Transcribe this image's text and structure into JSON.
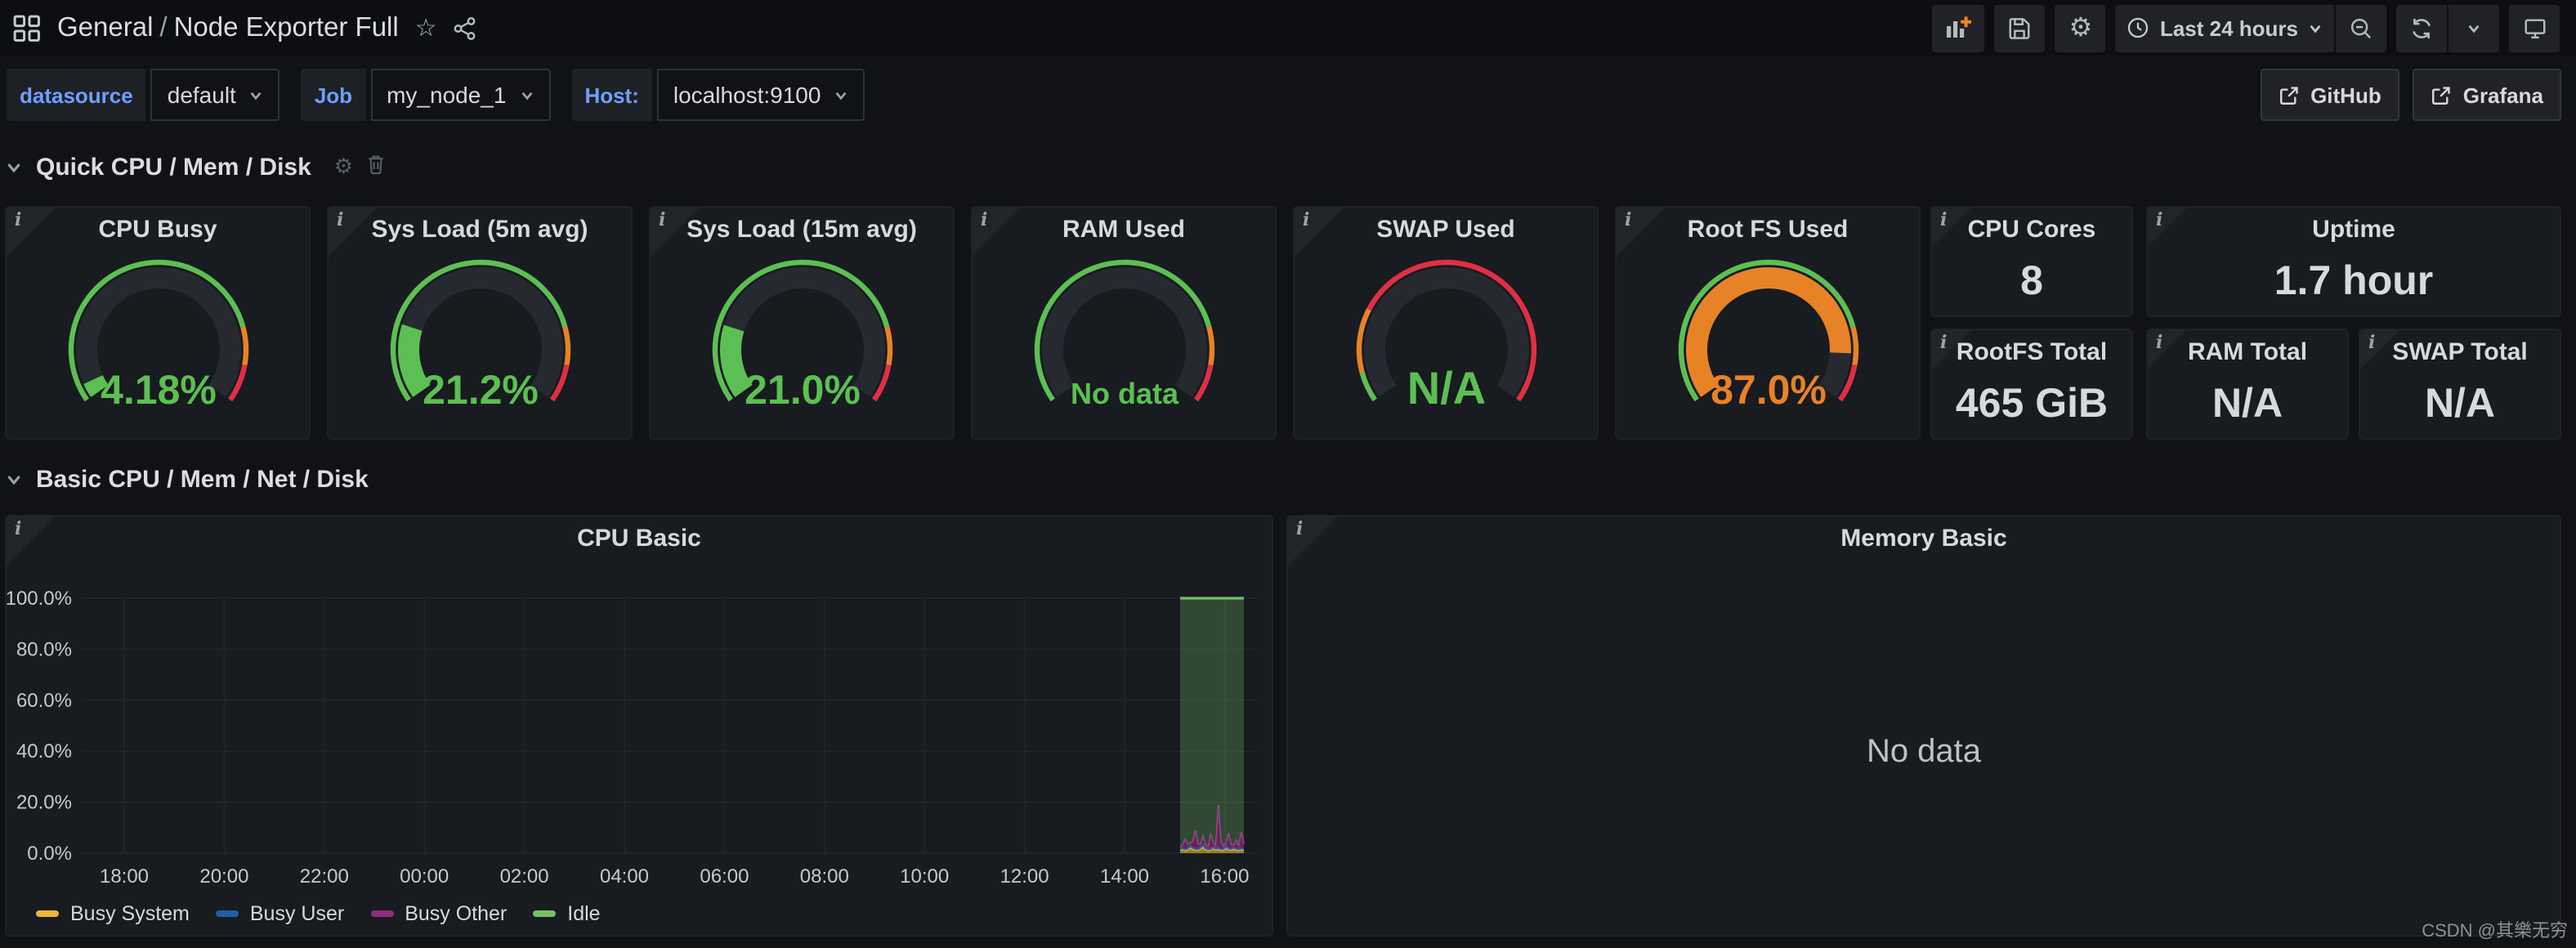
{
  "nav": {
    "breadcrumb": {
      "folder": "General",
      "separator": "/",
      "dashboard": "Node Exporter Full"
    },
    "toolbar": {
      "time_range": "Last 24 hours"
    },
    "icons": {
      "apps": "grid-4-squares",
      "star": "☆",
      "share": "share-alt",
      "add_panel": "bar-chart-plus",
      "save": "floppy",
      "settings": "⚙",
      "clock": "clock",
      "zoom_out": "magnifier-minus",
      "refresh": "sync",
      "chevron_down": "⌄",
      "tv": "monitor",
      "external_link": "arrow-out-of-box",
      "info": "i",
      "row_gear": "⚙",
      "trash": "trash-can"
    }
  },
  "filters": [
    {
      "label": "datasource",
      "value": "default"
    },
    {
      "label": "Job",
      "value": "my_node_1"
    },
    {
      "label": "Host:",
      "value": "localhost:9100"
    }
  ],
  "links": [
    {
      "label": "GitHub"
    },
    {
      "label": "Grafana"
    }
  ],
  "rows": {
    "quick": {
      "title": "Quick CPU / Mem / Disk"
    },
    "basic": {
      "title": "Basic CPU / Mem / Net / Disk"
    }
  },
  "quick_panels": [
    {
      "type": "gauge",
      "title": "CPU Busy",
      "display": "4.18%",
      "percent": 4.18,
      "value_color": "green",
      "thresholds": "standard",
      "text_size": 25
    },
    {
      "type": "gauge",
      "title": "Sys Load (5m avg)",
      "display": "21.2%",
      "percent": 21.2,
      "value_color": "green",
      "thresholds": "standard",
      "text_size": 25
    },
    {
      "type": "gauge",
      "title": "Sys Load (15m avg)",
      "display": "21.0%",
      "percent": 21.0,
      "value_color": "green",
      "thresholds": "standard",
      "text_size": 25
    },
    {
      "type": "gauge",
      "title": "RAM Used",
      "display": "No data",
      "percent": null,
      "value_color": "green",
      "thresholds": "standard",
      "text_size": 18
    },
    {
      "type": "gauge",
      "title": "SWAP Used",
      "display": "N/A",
      "percent": null,
      "value_color": "green",
      "thresholds": "swap",
      "text_size": 28
    },
    {
      "type": "gauge",
      "title": "Root FS Used",
      "display": "87.0%",
      "percent": 87.0,
      "value_color": "orange",
      "thresholds": "standard",
      "text_size": 25
    },
    {
      "type": "stat",
      "title": "CPU Cores",
      "display": "8"
    },
    {
      "type": "stat",
      "title": "Uptime",
      "display": "1.7 hour"
    },
    {
      "type": "stat",
      "title": "RootFS Total",
      "display": "465 GiB"
    },
    {
      "type": "stat",
      "title": "RAM Total",
      "display": "N/A"
    },
    {
      "type": "stat",
      "title": "SWAP Total",
      "display": "N/A"
    }
  ],
  "thresholds": {
    "standard": [
      {
        "stop": 0,
        "color": "#5CBF53"
      },
      {
        "stop": 80,
        "color": "#E88226"
      },
      {
        "stop": 90,
        "color": "#E02F44"
      },
      {
        "stop": 100,
        "color": null
      }
    ],
    "swap": [
      {
        "stop": 0,
        "color": "#5CBF53"
      },
      {
        "stop": 8,
        "color": "#E88226"
      },
      {
        "stop": 25,
        "color": "#E02F44"
      },
      {
        "stop": 100,
        "color": null
      }
    ]
  },
  "charts": {
    "cpu_basic": {
      "title": "CPU Basic"
    },
    "memory_basic": {
      "title": "Memory Basic",
      "no_data": "No data"
    }
  },
  "chart_data": {
    "type": "area",
    "title": "CPU Basic",
    "stacked": true,
    "ylim": [
      0,
      100
    ],
    "grid": true,
    "legend_position": "bottom",
    "y_ticks": [
      "0.0%",
      "20.0%",
      "40.0%",
      "60.0%",
      "80.0%",
      "100.0%"
    ],
    "x_ticks": [
      "18:00",
      "20:00",
      "22:00",
      "00:00",
      "02:00",
      "04:00",
      "06:00",
      "08:00",
      "10:00",
      "12:00",
      "14:00",
      "16:00"
    ],
    "data_window": {
      "start": "15:10",
      "end": "16:27"
    },
    "series": [
      {
        "name": "Busy System",
        "color": "#EAB839",
        "values": [
          1.2,
          1.4,
          1.1,
          1.3,
          2.1,
          1.5,
          1.2,
          1.1,
          1.6,
          2.4,
          1.3,
          1.1,
          1.2,
          1.8,
          1.3,
          1.5,
          1.1,
          1.2,
          1.9,
          1.4,
          1.2,
          1.6,
          1.3,
          1.1,
          1.4,
          1.2
        ]
      },
      {
        "name": "Busy User",
        "color": "#1F60A8",
        "values": [
          0.5,
          0.6,
          0.5,
          0.7,
          0.9,
          0.6,
          0.5,
          0.5,
          0.8,
          1.0,
          0.6,
          0.5,
          0.5,
          0.7,
          0.6,
          0.8,
          0.5,
          0.5,
          0.9,
          0.6,
          0.5,
          0.7,
          0.5,
          0.5,
          0.6,
          0.5
        ]
      },
      {
        "name": "Busy Other",
        "color": "#8D2F7E",
        "values": [
          0.6,
          1.2,
          3.8,
          1.5,
          0.9,
          2.6,
          7.2,
          2.0,
          1.0,
          3.4,
          1.2,
          0.8,
          5.5,
          1.6,
          1.0,
          16.5,
          2.8,
          1.0,
          0.9,
          5.8,
          1.6,
          0.8,
          3.2,
          1.0,
          6.4,
          1.8
        ]
      },
      {
        "name": "Idle",
        "color": "#73BF69",
        "values": [
          97.7,
          96.8,
          94.6,
          96.5,
          96.1,
          95.3,
          91.1,
          96.4,
          96.6,
          93.2,
          96.9,
          97.6,
          92.8,
          95.9,
          97.1,
          81.2,
          95.6,
          97.3,
          96.3,
          92.2,
          96.7,
          96.9,
          95.0,
          97.4,
          91.6,
          96.5
        ]
      }
    ]
  },
  "watermark": "CSDN @其樂无穷",
  "colors": {
    "page_bg": "#111217",
    "nav_bg": "#0c0e11",
    "panel_bg": "#181b1f",
    "text": "#d8d9da",
    "blue_label": "#6e9fff",
    "green": "#5CBF53",
    "orange": "#E88226",
    "red": "#E02F44",
    "gauge_track": "#262a30",
    "gridline": "#202328",
    "axis_text": "#c8c9cc"
  }
}
